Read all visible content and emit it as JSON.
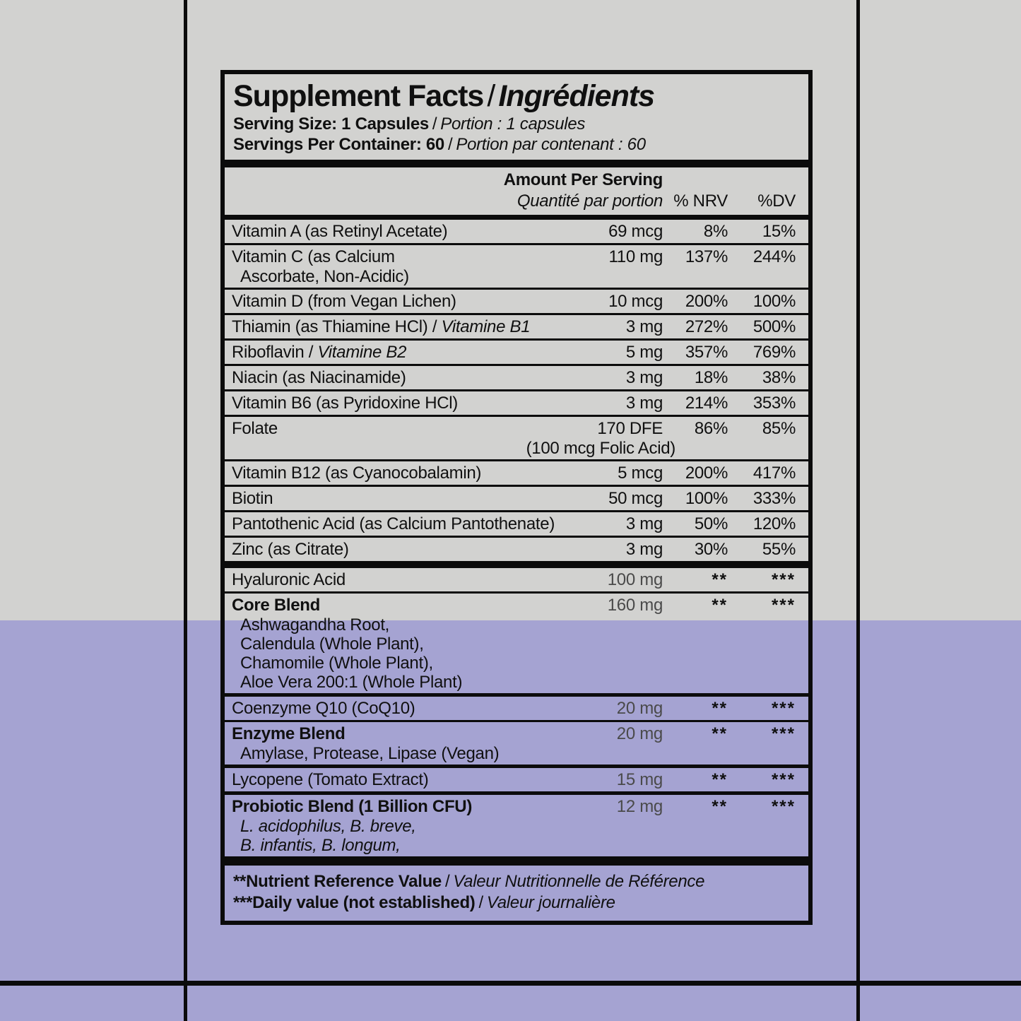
{
  "colors": {
    "background_gray": "#d2d2d0",
    "band_purple": "#a5a3d2",
    "line_black": "#0b0b0b",
    "text_black": "#101010",
    "amount_dim": "#4a4a4a"
  },
  "label": {
    "title_en": "Supplement Facts",
    "title_fr": "Ingrédients",
    "slash": "/",
    "serving_size_en": "Serving Size: 1 Capsules",
    "serving_size_fr": "Portion : 1 capsules",
    "servings_en": "Servings Per Container: 60",
    "servings_fr": "Portion par contenant : 60",
    "header": {
      "amount_en": "Amount Per Serving",
      "amount_fr": "Quantité par portion",
      "nrv": "% NRV",
      "dv": "%DV"
    },
    "rows": [
      {
        "name": "Vitamin A (as Retinyl Acetate)",
        "amount": "69 mcg",
        "nrv": "8%",
        "dv": "15%"
      },
      {
        "name": "Vitamin C (as Calcium",
        "name2": "Ascorbate, Non-Acidic)",
        "amount": "110 mg",
        "nrv": "137%",
        "dv": "244%",
        "sep": "thin"
      },
      {
        "name": "Vitamin D (from Vegan Lichen)",
        "amount": "10 mcg",
        "nrv": "200%",
        "dv": "100%",
        "sep": "thin"
      },
      {
        "name": "Thiamin (as Thiamine HCl)",
        "fr": "Vitamine B1",
        "amount": "3 mg",
        "nrv": "272%",
        "dv": "500%",
        "sep": "thin"
      },
      {
        "name": "Riboflavin",
        "fr": "Vitamine B2",
        "amount": "5 mg",
        "nrv": "357%",
        "dv": "769%",
        "sep": "thin"
      },
      {
        "name": "Niacin (as Niacinamide)",
        "amount": "3 mg",
        "nrv": "18%",
        "dv": "38%",
        "sep": "thin"
      },
      {
        "name": "Vitamin B6 (as Pyridoxine HCl)",
        "amount": "3 mg",
        "nrv": "214%",
        "dv": "353%",
        "sep": "thin"
      },
      {
        "name": "Folate",
        "amount": "170 DFE",
        "amount2": "(100 mcg Folic Acid)",
        "nrv": "86%",
        "dv": "85%",
        "sep": "thin"
      },
      {
        "name": "Vitamin B12 (as Cyanocobalamin)",
        "amount": "5 mcg",
        "nrv": "200%",
        "dv": "417%",
        "sep": "thin"
      },
      {
        "name": "Biotin",
        "amount": "50 mcg",
        "nrv": "100%",
        "dv": "333%",
        "sep": "thin"
      },
      {
        "name": "Pantothenic Acid (as Calcium Pantothenate)",
        "amount": "3 mg",
        "nrv": "50%",
        "dv": "120%",
        "sep": "thin"
      },
      {
        "name": "Zinc (as Citrate)",
        "amount": "3 mg",
        "nrv": "30%",
        "dv": "55%",
        "sep": "thin"
      },
      {
        "name": "Hyaluronic Acid",
        "amount": "100 mg",
        "dim": true,
        "nrv": "**",
        "dv": "***",
        "sep": "bar"
      },
      {
        "name": "Core Blend",
        "bold": true,
        "amount": "160 mg",
        "dim": true,
        "nrv": "**",
        "dv": "***",
        "sep": "thin",
        "sub": [
          "Ashwagandha Root,",
          "Calendula (Whole Plant),",
          "Chamomile (Whole Plant),",
          "Aloe Vera 200:1 (Whole Plant)"
        ]
      },
      {
        "name": "Coenzyme Q10 (CoQ10)",
        "amount": "20 mg",
        "dim": true,
        "nrv": "**",
        "dv": "***",
        "sep": "med"
      },
      {
        "name": "Enzyme Blend",
        "bold": true,
        "amount": "20 mg",
        "dim": true,
        "nrv": "**",
        "dv": "***",
        "sep": "thin",
        "sub": [
          "Amylase, Protease, Lipase (Vegan)"
        ]
      },
      {
        "name": "Lycopene (Tomato Extract)",
        "amount": "15 mg",
        "dim": true,
        "nrv": "**",
        "dv": "***",
        "sep": "med"
      },
      {
        "name": "Probiotic Blend (1 Billion CFU)",
        "bold": true,
        "amount": "12 mg",
        "dim": true,
        "nrv": "**",
        "dv": "***",
        "sep": "med",
        "sub": [
          "L. acidophilus, B. breve,",
          "B. infantis, B. longum,"
        ],
        "subItalic": true
      }
    ],
    "footnotes": [
      {
        "en": "**Nutrient Reference Value",
        "fr": "Valeur Nutritionnelle de Référence"
      },
      {
        "en": "***Daily value (not established)",
        "fr": "Valeur journalière"
      }
    ]
  }
}
